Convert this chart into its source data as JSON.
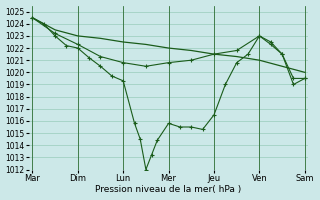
{
  "xlabel": "Pression niveau de la mer( hPa )",
  "background_color": "#cce8e8",
  "grid_color": "#99ccbb",
  "line_color": "#1a5c1a",
  "ylim": [
    1012,
    1025.5
  ],
  "yticks": [
    1012,
    1013,
    1014,
    1015,
    1016,
    1017,
    1018,
    1019,
    1020,
    1021,
    1022,
    1023,
    1024,
    1025
  ],
  "x_day_labels": [
    "Mar",
    "Dim",
    "Lun",
    "Mer",
    "Jeu",
    "Ven",
    "Sam"
  ],
  "x_day_positions": [
    0,
    4,
    8,
    12,
    16,
    20,
    24
  ],
  "smooth_line_x": [
    0,
    2,
    4,
    6,
    8,
    10,
    12,
    14,
    16,
    18,
    20,
    22,
    24
  ],
  "smooth_line_y": [
    1024.5,
    1023.5,
    1023.0,
    1022.8,
    1022.5,
    1022.3,
    1022.0,
    1021.8,
    1021.5,
    1021.3,
    1021.0,
    1020.5,
    1020.0
  ],
  "line_main_x": [
    0,
    1,
    2,
    3,
    4,
    5,
    6,
    7,
    8,
    9,
    9.5,
    10,
    10.5,
    11,
    12,
    13,
    14,
    15,
    16,
    17,
    18,
    19,
    20,
    21,
    22,
    23,
    24
  ],
  "line_main_y": [
    1024.5,
    1024.0,
    1023.0,
    1022.2,
    1022.0,
    1021.2,
    1020.5,
    1019.7,
    1019.3,
    1015.8,
    1014.5,
    1012.0,
    1013.2,
    1014.4,
    1015.8,
    1015.5,
    1015.5,
    1015.3,
    1016.5,
    1019.0,
    1020.8,
    1021.5,
    1023.0,
    1022.3,
    1021.5,
    1019.0,
    1019.5
  ],
  "line_mid_x": [
    0,
    2,
    4,
    6,
    8,
    10,
    12,
    14,
    16,
    18,
    20,
    21,
    22,
    23,
    24
  ],
  "line_mid_y": [
    1024.5,
    1023.2,
    1022.3,
    1021.3,
    1020.8,
    1020.5,
    1020.8,
    1021.0,
    1021.5,
    1021.8,
    1023.0,
    1022.5,
    1021.5,
    1019.5,
    1019.5
  ]
}
